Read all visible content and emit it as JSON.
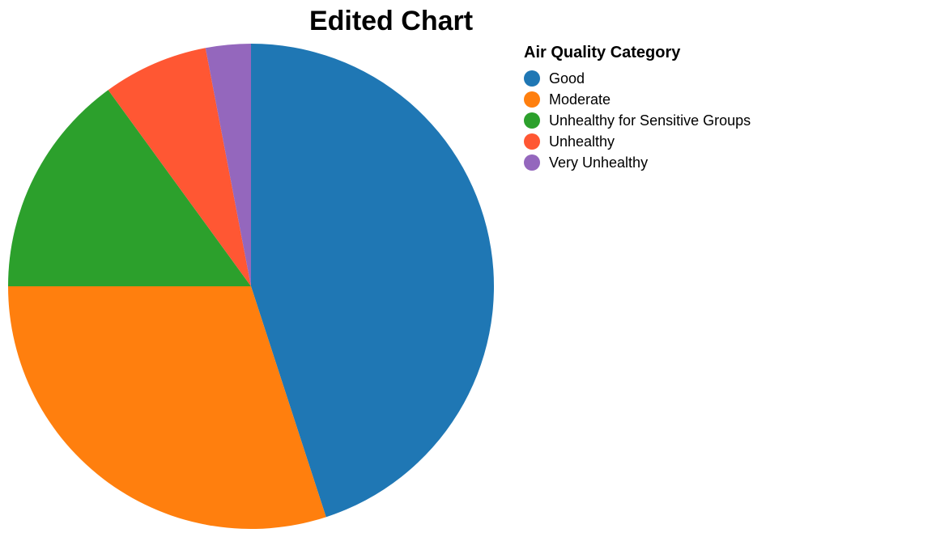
{
  "chart_data": {
    "type": "pie",
    "title": "Edited Chart",
    "legend": {
      "title": "Air Quality Category",
      "placement": "top-right"
    },
    "categories": [
      "Good",
      "Moderate",
      "Unhealthy for Sensitive Groups",
      "Unhealthy",
      "Very Unhealthy"
    ],
    "values": [
      45,
      30,
      15,
      7,
      3
    ],
    "colors": [
      "#1f77b4",
      "#ff7f0e",
      "#2ca02c",
      "#ff5733",
      "#9467bd"
    ]
  }
}
